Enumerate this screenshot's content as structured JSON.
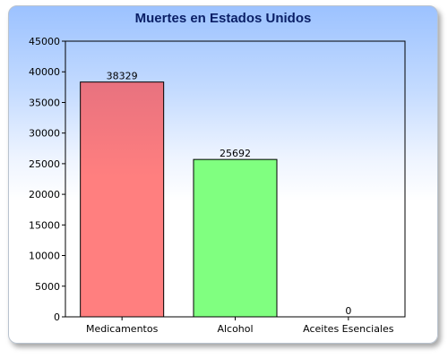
{
  "chart_data": {
    "type": "bar",
    "title": "Muertes en Estados Unidos",
    "categories": [
      "Medicamentos",
      "Alcohol",
      "Aceites Esenciales"
    ],
    "values": [
      38329,
      25692,
      0
    ],
    "value_labels": [
      "38329",
      "25692",
      "0"
    ],
    "ylim": [
      0,
      45000
    ],
    "yticks": [
      0,
      5000,
      10000,
      15000,
      20000,
      25000,
      30000,
      35000,
      40000,
      45000
    ],
    "ytick_labels": [
      "0",
      "5000",
      "10000",
      "15000",
      "20000",
      "25000",
      "30000",
      "35000",
      "40000",
      "45000"
    ],
    "grid": false,
    "legend": "none",
    "colors": [
      "#ff7f7f",
      "#80ff80",
      "#8080ff"
    ]
  }
}
